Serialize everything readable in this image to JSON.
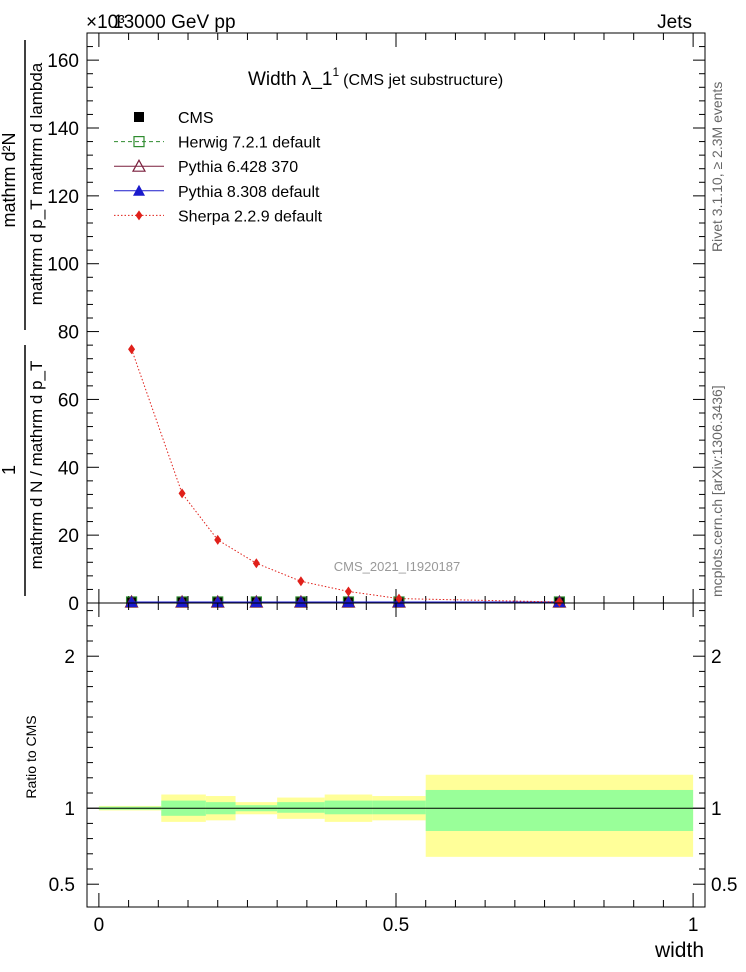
{
  "header": {
    "energy_label": "13000 GeV pp",
    "exponent_label": "×10³",
    "process_label": "Jets"
  },
  "chart_data": {
    "type": "line",
    "title_main": "Width λ_1",
    "title_sup": "1",
    "title_sub": "(CMS jet substructure)",
    "xlabel": "width",
    "ylabel_top_num": "mathrm d²N",
    "ylabel_top_den": "mathrm d p_T mathrm d lambda",
    "ylabel_bot_num": "1",
    "ylabel_bot_den": "mathrm d N / mathrm d p_T",
    "ratio_ylabel": "Ratio to CMS",
    "analysis_id": "CMS_2021_I1920187",
    "side_label_1": "Rivet 3.1.10, ≥ 2.3M events",
    "side_label_2": "mcplots.cern.ch [arXiv:1306.3436]",
    "xlim": [
      -0.02,
      1.02
    ],
    "ylim": [
      0,
      168
    ],
    "ratio_ylim": [
      0.35,
      2.35
    ],
    "x_ticks": [
      0,
      0.5,
      1
    ],
    "x_tick_labels": [
      "0",
      "0.5",
      "1"
    ],
    "y_ticks": [
      0,
      20,
      40,
      60,
      80,
      100,
      120,
      140,
      160
    ],
    "y_tick_labels": [
      "0",
      "20",
      "40",
      "60",
      "80",
      "100",
      "120",
      "140",
      "160"
    ],
    "ratio_ticks": [
      0.5,
      1,
      2
    ],
    "ratio_tick_labels": [
      "0.5",
      "1",
      "2"
    ],
    "bin_edges": [
      0,
      0.105,
      0.18,
      0.23,
      0.3,
      0.38,
      0.46,
      0.55,
      1.0
    ],
    "x": [
      0.055,
      0.14,
      0.2,
      0.265,
      0.34,
      0.42,
      0.505,
      0.775
    ],
    "series": [
      {
        "name": "CMS",
        "values": [
          0.3,
          0.3,
          0.3,
          0.3,
          0.3,
          0.3,
          0.3,
          0.3
        ],
        "color": "#000000",
        "marker": "square"
      },
      {
        "name": "Herwig 7.2.1 default",
        "values": [
          0.3,
          0.3,
          0.3,
          0.3,
          0.3,
          0.3,
          0.3,
          0.3
        ],
        "color": "#2e8b2e",
        "marker": "open-square"
      },
      {
        "name": "Pythia 6.428 370",
        "values": [
          0.3,
          0.3,
          0.3,
          0.3,
          0.3,
          0.3,
          0.3,
          0.3
        ],
        "color": "#7a1f3d",
        "marker": "open-triangle"
      },
      {
        "name": "Pythia 8.308 default",
        "values": [
          0.3,
          0.3,
          0.3,
          0.3,
          0.3,
          0.3,
          0.3,
          0.3
        ],
        "color": "#1a1acc",
        "marker": "triangle"
      },
      {
        "name": "Sherpa 2.2.9 default",
        "values": [
          74.8,
          32.3,
          18.6,
          11.7,
          6.4,
          3.4,
          1.3,
          0.3
        ],
        "color": "#e0201a",
        "marker": "diamond"
      }
    ],
    "ratio_band_stat": [
      [
        0.99,
        1.01
      ],
      [
        0.95,
        1.05
      ],
      [
        0.96,
        1.04
      ],
      [
        0.98,
        1.02
      ],
      [
        0.97,
        1.04
      ],
      [
        0.96,
        1.05
      ],
      [
        0.96,
        1.05
      ],
      [
        0.85,
        1.12
      ]
    ],
    "ratio_band_total": [
      [
        0.985,
        1.015
      ],
      [
        0.91,
        1.09
      ],
      [
        0.92,
        1.08
      ],
      [
        0.96,
        1.04
      ],
      [
        0.93,
        1.07
      ],
      [
        0.91,
        1.09
      ],
      [
        0.92,
        1.08
      ],
      [
        0.68,
        1.22
      ]
    ],
    "colors": {
      "band_stat": "#99ff99",
      "band_total": "#ffff99"
    }
  }
}
